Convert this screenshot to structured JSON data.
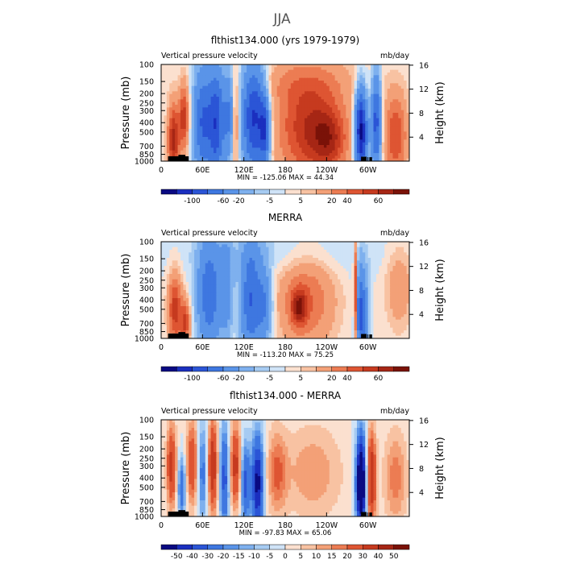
{
  "figure_title": "JJA",
  "chart_data": [
    {
      "type": "heatmap",
      "title": "flthist134.000 (yrs 1979-1979)",
      "left_label": "Vertical pressure velocity",
      "right_label": "mb/day",
      "ylabel": "Pressure (mb)",
      "ylabel_right": "Height (km)",
      "x_ticks": [
        "0",
        "60E",
        "120E",
        "180",
        "120W",
        "60W"
      ],
      "x_tick_lon": [
        0,
        60,
        120,
        180,
        240,
        300
      ],
      "xlim": [
        0,
        360
      ],
      "y_ticks": [
        "100",
        "150",
        "200",
        "250",
        "300",
        "400",
        "500",
        "700",
        "850",
        "1000"
      ],
      "y_tick_p": [
        100,
        150,
        200,
        250,
        300,
        400,
        500,
        700,
        850,
        1000
      ],
      "ylim": [
        1000,
        100
      ],
      "y_scale": "log",
      "height_ticks": [
        "16",
        "12",
        "8",
        "4"
      ],
      "height_km": [
        16,
        12,
        8,
        4
      ],
      "minmax_text": "MIN = -125.06   MAX =  44.34",
      "colorbar_labels": [
        "-100",
        "-60",
        "-20",
        "-5",
        "5",
        "20",
        "40",
        "60"
      ],
      "colorbar_levels": [
        -125,
        -100,
        -80,
        -60,
        -40,
        -20,
        -10,
        -5,
        0,
        5,
        10,
        20,
        30,
        40,
        50,
        60
      ],
      "colorbar_colors": [
        "#0a0a82",
        "#1b2fbf",
        "#2b55d6",
        "#3e77e0",
        "#5a94e8",
        "#7eb0ee",
        "#a6cbf2",
        "#cfe3f7",
        "#fbe0cf",
        "#f8c2a2",
        "#f3a077",
        "#ec7c53",
        "#de5532",
        "#c63a1f",
        "#a62615",
        "#7a1208"
      ],
      "pattern": [
        {
          "lon": 18,
          "p": 600,
          "slon": 6,
          "sp": 0.6,
          "v": 55
        },
        {
          "lon": 33,
          "p": 350,
          "slon": 5,
          "sp": 0.55,
          "v": 45
        },
        {
          "lon": 60,
          "p": 400,
          "slon": 9,
          "sp": 0.9,
          "v": -60
        },
        {
          "lon": 80,
          "p": 400,
          "slon": 8,
          "sp": 0.9,
          "v": -75
        },
        {
          "lon": 98,
          "p": 350,
          "slon": 5,
          "sp": 0.7,
          "v": -40
        },
        {
          "lon": 108,
          "p": 400,
          "slon": 4,
          "sp": 0.8,
          "v": 25
        },
        {
          "lon": 135,
          "p": 350,
          "slon": 12,
          "sp": 0.9,
          "v": -85
        },
        {
          "lon": 150,
          "p": 500,
          "slon": 5,
          "sp": 0.5,
          "v": -60
        },
        {
          "lon": 215,
          "p": 450,
          "slon": 34,
          "sp": 0.9,
          "v": 48
        },
        {
          "lon": 245,
          "p": 600,
          "slon": 18,
          "sp": 0.5,
          "v": 30
        },
        {
          "lon": 290,
          "p": 500,
          "slon": 6,
          "sp": 0.7,
          "v": -110
        },
        {
          "lon": 312,
          "p": 400,
          "slon": 5,
          "sp": 0.8,
          "v": -70
        },
        {
          "lon": 340,
          "p": 550,
          "slon": 12,
          "sp": 0.7,
          "v": 40
        },
        {
          "lon": 180,
          "p": 150,
          "slon": 90,
          "sp": 0.4,
          "v": 12
        },
        {
          "lon": 100,
          "p": 150,
          "slon": 40,
          "sp": 0.4,
          "v": -8
        }
      ]
    },
    {
      "type": "heatmap",
      "title": "MERRA",
      "left_label": "Vertical pressure velocity",
      "right_label": "mb/day",
      "ylabel": "Pressure (mb)",
      "ylabel_right": "Height (km)",
      "x_ticks": [
        "0",
        "60E",
        "120E",
        "180",
        "120W",
        "60W"
      ],
      "x_tick_lon": [
        0,
        60,
        120,
        180,
        240,
        300
      ],
      "xlim": [
        0,
        360
      ],
      "y_ticks": [
        "100",
        "150",
        "200",
        "250",
        "300",
        "400",
        "500",
        "700",
        "850",
        "1000"
      ],
      "y_tick_p": [
        100,
        150,
        200,
        250,
        300,
        400,
        500,
        700,
        850,
        1000
      ],
      "ylim": [
        1000,
        100
      ],
      "y_scale": "log",
      "height_ticks": [
        "16",
        "12",
        "8",
        "4"
      ],
      "height_km": [
        16,
        12,
        8,
        4
      ],
      "minmax_text": "MIN = -113.20   MAX =  75.25",
      "colorbar_labels": [
        "-100",
        "-60",
        "-20",
        "-5",
        "5",
        "20",
        "40",
        "60"
      ],
      "colorbar_levels": [
        -125,
        -100,
        -80,
        -60,
        -40,
        -20,
        -10,
        -5,
        0,
        5,
        10,
        20,
        30,
        40,
        50,
        60
      ],
      "colorbar_colors": [
        "#0a0a82",
        "#1b2fbf",
        "#2b55d6",
        "#3e77e0",
        "#5a94e8",
        "#7eb0ee",
        "#a6cbf2",
        "#cfe3f7",
        "#fbe0cf",
        "#f8c2a2",
        "#f3a077",
        "#ec7c53",
        "#de5532",
        "#c63a1f",
        "#a62615",
        "#7a1208"
      ],
      "pattern": [
        {
          "lon": 20,
          "p": 500,
          "slon": 7,
          "sp": 0.6,
          "v": 45
        },
        {
          "lon": 35,
          "p": 700,
          "slon": 5,
          "sp": 0.4,
          "v": 40
        },
        {
          "lon": 70,
          "p": 350,
          "slon": 12,
          "sp": 0.9,
          "v": -55
        },
        {
          "lon": 95,
          "p": 300,
          "slon": 6,
          "sp": 0.8,
          "v": -30
        },
        {
          "lon": 130,
          "p": 400,
          "slon": 10,
          "sp": 0.9,
          "v": -60
        },
        {
          "lon": 150,
          "p": 450,
          "slon": 8,
          "sp": 0.6,
          "v": -40
        },
        {
          "lon": 210,
          "p": 400,
          "slon": 30,
          "sp": 0.8,
          "v": 30
        },
        {
          "lon": 200,
          "p": 480,
          "slon": 8,
          "sp": 0.3,
          "v": 40
        },
        {
          "lon": 290,
          "p": 550,
          "slon": 6,
          "sp": 0.7,
          "v": -70
        },
        {
          "lon": 282,
          "p": 400,
          "slon": 2,
          "sp": 0.9,
          "v": 60
        },
        {
          "lon": 345,
          "p": 300,
          "slon": 14,
          "sp": 0.7,
          "v": 18
        },
        {
          "lon": 180,
          "p": 130,
          "slon": 100,
          "sp": 0.4,
          "v": -8
        }
      ]
    },
    {
      "type": "heatmap",
      "title": "flthist134.000 - MERRA",
      "left_label": "Vertical pressure velocity",
      "right_label": "mb/day",
      "ylabel": "Pressure (mb)",
      "ylabel_right": "Height (km)",
      "x_ticks": [
        "0",
        "60E",
        "120E",
        "180",
        "120W",
        "60W"
      ],
      "x_tick_lon": [
        0,
        60,
        120,
        180,
        240,
        300
      ],
      "xlim": [
        0,
        360
      ],
      "y_ticks": [
        "100",
        "150",
        "200",
        "250",
        "300",
        "400",
        "500",
        "700",
        "850",
        "1000"
      ],
      "y_tick_p": [
        100,
        150,
        200,
        250,
        300,
        400,
        500,
        700,
        850,
        1000
      ],
      "ylim": [
        1000,
        100
      ],
      "y_scale": "log",
      "height_ticks": [
        "16",
        "12",
        "8",
        "4"
      ],
      "height_km": [
        16,
        12,
        8,
        4
      ],
      "minmax_text": "MIN = -97.83   MAX =  65.06",
      "colorbar_labels": [
        "-50",
        "-40",
        "-30",
        "-20",
        "-15",
        "-10",
        "-5",
        "0",
        "5",
        "10",
        "15",
        "20",
        "30",
        "40",
        "50"
      ],
      "colorbar_levels": [
        -60,
        -50,
        -40,
        -30,
        -20,
        -15,
        -10,
        -5,
        0,
        5,
        10,
        15,
        20,
        30,
        40,
        50
      ],
      "colorbar_colors": [
        "#0a0a82",
        "#1b2fbf",
        "#2b55d6",
        "#3e77e0",
        "#5a94e8",
        "#7eb0ee",
        "#a6cbf2",
        "#cfe3f7",
        "#fbe0cf",
        "#f8c2a2",
        "#f3a077",
        "#ec7c53",
        "#de5532",
        "#c63a1f",
        "#a62615",
        "#7a1208"
      ],
      "pattern": [
        {
          "lon": 15,
          "p": 300,
          "slon": 5,
          "sp": 0.7,
          "v": 35
        },
        {
          "lon": 30,
          "p": 500,
          "slon": 4,
          "sp": 0.5,
          "v": -30
        },
        {
          "lon": 45,
          "p": 280,
          "slon": 6,
          "sp": 0.7,
          "v": 30
        },
        {
          "lon": 60,
          "p": 350,
          "slon": 5,
          "sp": 0.8,
          "v": -25
        },
        {
          "lon": 75,
          "p": 300,
          "slon": 5,
          "sp": 0.8,
          "v": 40
        },
        {
          "lon": 92,
          "p": 400,
          "slon": 5,
          "sp": 0.9,
          "v": -35
        },
        {
          "lon": 108,
          "p": 300,
          "slon": 6,
          "sp": 0.7,
          "v": 35
        },
        {
          "lon": 122,
          "p": 450,
          "slon": 5,
          "sp": 0.7,
          "v": -35
        },
        {
          "lon": 140,
          "p": 450,
          "slon": 6,
          "sp": 0.8,
          "v": -55
        },
        {
          "lon": 168,
          "p": 350,
          "slon": 10,
          "sp": 0.7,
          "v": 20
        },
        {
          "lon": 220,
          "p": 350,
          "slon": 30,
          "sp": 0.8,
          "v": 14
        },
        {
          "lon": 290,
          "p": 450,
          "slon": 5,
          "sp": 0.8,
          "v": -80
        },
        {
          "lon": 305,
          "p": 400,
          "slon": 5,
          "sp": 0.8,
          "v": 40
        },
        {
          "lon": 340,
          "p": 400,
          "slon": 12,
          "sp": 0.8,
          "v": 18
        }
      ]
    }
  ]
}
